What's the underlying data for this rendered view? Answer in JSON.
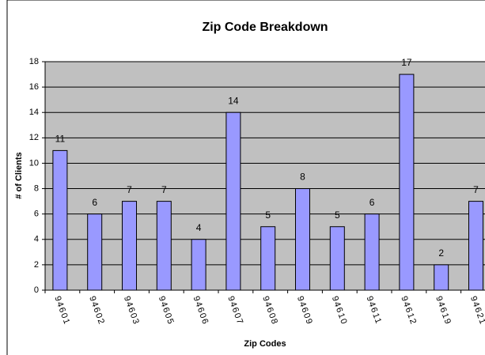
{
  "chart_data": {
    "type": "bar",
    "title": "Zip Code Breakdown",
    "x_label": "Zip Codes",
    "y_label": "# of Clients",
    "categories": [
      "94601",
      "94602",
      "94603",
      "94605",
      "94606",
      "94607",
      "94608",
      "94609",
      "94610",
      "94611",
      "94612",
      "94619",
      "94621"
    ],
    "values": [
      11,
      6,
      7,
      7,
      4,
      14,
      5,
      8,
      5,
      6,
      17,
      2,
      7
    ],
    "color": "#9999ff",
    "ylim": [
      0,
      18
    ],
    "yticks": [
      0,
      2,
      4,
      6,
      8,
      10,
      12,
      14,
      16,
      18
    ],
    "grid": true
  }
}
